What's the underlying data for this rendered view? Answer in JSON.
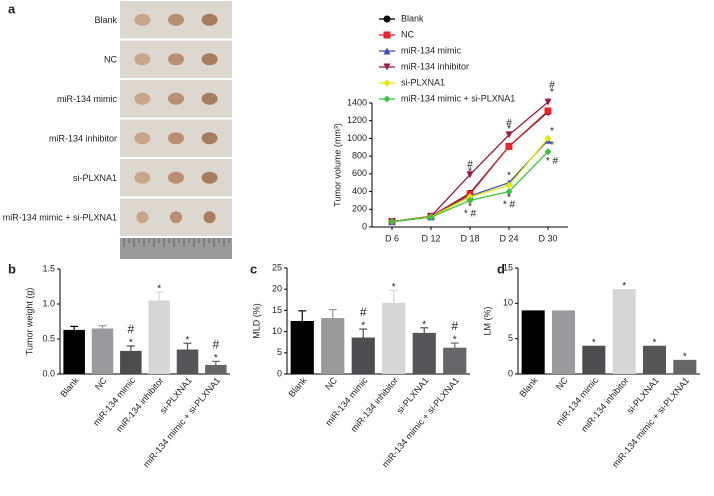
{
  "photo_panel": {
    "panel": "a",
    "rows": [
      "Blank",
      "NC",
      "miR-134 mimic",
      "miR-134 inhibitor",
      "si-PLXNA1",
      "miR-134 mimic + si-PLXNA1"
    ]
  },
  "chart_data": [
    {
      "type": "line",
      "ylabel": "Tumor volume (mm³)",
      "categories": [
        "D 6",
        "D 12",
        "D 18",
        "D 24",
        "D 30"
      ],
      "ylim": [
        0,
        1400
      ],
      "yticks": [
        0,
        200,
        400,
        600,
        800,
        1000,
        1200,
        1400
      ],
      "series": [
        {
          "name": "Blank",
          "color": "#000000",
          "marker": "circle",
          "values": [
            60,
            120,
            380,
            910,
            1300
          ]
        },
        {
          "name": "NC",
          "color": "#e8242c",
          "marker": "square",
          "values": [
            60,
            120,
            370,
            910,
            1310
          ]
        },
        {
          "name": "miR-134 mimic",
          "color": "#3a4fb4",
          "marker": "triangle",
          "values": [
            60,
            115,
            350,
            500,
            980
          ]
        },
        {
          "name": "miR-134 inhibitor",
          "color": "#9b1a4a",
          "marker": "triangle-down",
          "values": [
            60,
            120,
            590,
            1040,
            1410
          ]
        },
        {
          "name": "si-PLXNA1",
          "color": "#e8e800",
          "marker": "diamond",
          "values": [
            60,
            115,
            340,
            470,
            1000
          ]
        },
        {
          "name": "miR-134 mimic + si-PLXNA1",
          "color": "#3cc43c",
          "marker": "diamond",
          "values": [
            60,
            110,
            300,
            400,
            850
          ]
        }
      ],
      "annotations": [
        {
          "x": 2,
          "y": 700,
          "text": "#"
        },
        {
          "x": 2,
          "y": 620,
          "text": "*"
        },
        {
          "x": 2,
          "y": 230,
          "text": "*"
        },
        {
          "x": 2,
          "y": 150,
          "text": "* #"
        },
        {
          "x": 3,
          "y": 1170,
          "text": "#"
        },
        {
          "x": 3,
          "y": 1100,
          "text": "*"
        },
        {
          "x": 3,
          "y": 580,
          "text": "*"
        },
        {
          "x": 3,
          "y": 330,
          "text": "*"
        },
        {
          "x": 3,
          "y": 250,
          "text": "* #"
        },
        {
          "x": 4,
          "y": 1600,
          "text": "#"
        },
        {
          "x": 4,
          "y": 1520,
          "text": "*"
        },
        {
          "x": 4,
          "y": 1080,
          "text": "*"
        },
        {
          "x": 4,
          "y": 920,
          "text": "*"
        },
        {
          "x": 4,
          "y": 740,
          "text": "* #"
        }
      ],
      "legend": "top-left"
    },
    {
      "type": "bar",
      "panel": "b",
      "ylabel": "Tumor weight (g)",
      "categories": [
        "Blank",
        "NC",
        "miR-134 mimic",
        "miR-134 inhibitor",
        "si-PLXNA1",
        "miR-134 mimic + si-PLXNA1"
      ],
      "values": [
        0.63,
        0.65,
        0.33,
        1.05,
        0.35,
        0.13
      ],
      "errors": [
        0.05,
        0.04,
        0.07,
        0.12,
        0.09,
        0.05
      ],
      "colors": [
        "#000000",
        "#9a9a9c",
        "#4d4d4f",
        "#d6d6d6",
        "#555557",
        "#666668"
      ],
      "ylim": [
        0,
        1.5
      ],
      "yticks": [
        {
          "value": 0,
          "label": "0.0"
        },
        {
          "value": 0.5,
          "label": "0.5"
        },
        {
          "value": 1,
          "label": "1.0"
        },
        {
          "value": 1.5,
          "label": "1.5"
        }
      ],
      "annotations": [
        {
          "category": 2,
          "text": "#"
        },
        {
          "category": 2,
          "text": "*"
        },
        {
          "category": 3,
          "text": "*"
        },
        {
          "category": 4,
          "text": "*"
        },
        {
          "category": 5,
          "text": "#"
        },
        {
          "category": 5,
          "text": "*"
        }
      ]
    },
    {
      "type": "bar",
      "panel": "c",
      "ylabel": "MLD (%)",
      "categories": [
        "Blank",
        "NC",
        "miR-134 mimic",
        "miR-134 inhibitor",
        "si-PLXNA1",
        "miR-134 mimic + si-PLXNA1"
      ],
      "values": [
        12.5,
        13.2,
        8.6,
        16.8,
        9.7,
        6.2
      ],
      "errors": [
        2.4,
        2.0,
        2.0,
        2.9,
        1.2,
        1.1
      ],
      "colors": [
        "#000000",
        "#9a9a9c",
        "#4d4d4f",
        "#d6d6d6",
        "#555557",
        "#666668"
      ],
      "ylim": [
        0,
        25
      ],
      "yticks": [
        0,
        5,
        10,
        15,
        20,
        25
      ],
      "annotations": [
        {
          "category": 2,
          "text": "#"
        },
        {
          "category": 2,
          "text": "*"
        },
        {
          "category": 3,
          "text": "*"
        },
        {
          "category": 4,
          "text": "*"
        },
        {
          "category": 5,
          "text": "#"
        },
        {
          "category": 5,
          "text": "*"
        }
      ]
    },
    {
      "type": "bar",
      "panel": "d",
      "ylabel": "LM (%)",
      "categories": [
        "Blank",
        "NC",
        "miR-134 mimic",
        "miR-134 inhibitor",
        "si-PLXNA1",
        "miR-134 mimic + si-PLXNA1"
      ],
      "values": [
        9,
        9,
        4,
        12,
        4,
        2
      ],
      "colors": [
        "#000000",
        "#9a9a9c",
        "#4d4d4f",
        "#d6d6d6",
        "#555557",
        "#666668"
      ],
      "ylim": [
        0,
        15
      ],
      "yticks": [
        0,
        5,
        10,
        15
      ],
      "annotations": [
        {
          "category": 2,
          "text": "*"
        },
        {
          "category": 3,
          "text": "*"
        },
        {
          "category": 4,
          "text": "*"
        },
        {
          "category": 5,
          "text": "*"
        }
      ]
    }
  ]
}
